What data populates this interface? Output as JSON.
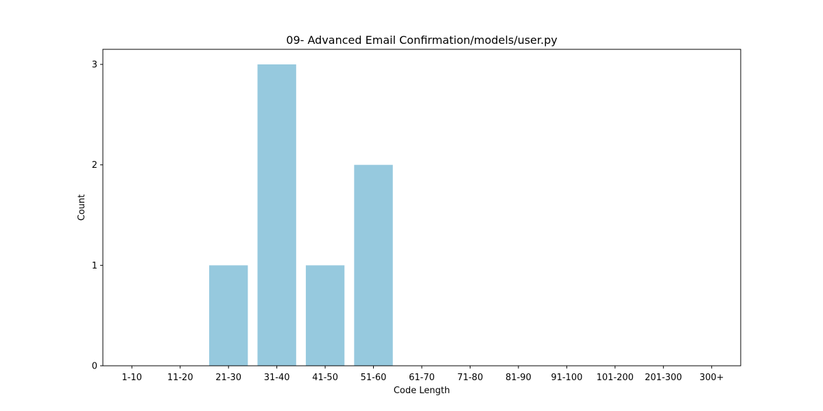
{
  "chart_data": {
    "type": "bar",
    "title": "09- Advanced Email Confirmation/models/user.py",
    "xlabel": "Code Length",
    "ylabel": "Count",
    "categories": [
      "1-10",
      "11-20",
      "21-30",
      "31-40",
      "41-50",
      "51-60",
      "61-70",
      "71-80",
      "81-90",
      "91-100",
      "101-200",
      "201-300",
      "300+"
    ],
    "values": [
      0,
      0,
      1,
      3,
      1,
      2,
      0,
      0,
      0,
      0,
      0,
      0,
      0
    ],
    "ylim": [
      0,
      3.15
    ],
    "yticks": [
      0,
      1,
      2,
      3
    ],
    "grid": false,
    "legend": "none",
    "bar_color": "#96c9de",
    "axis_color": "#000000"
  }
}
